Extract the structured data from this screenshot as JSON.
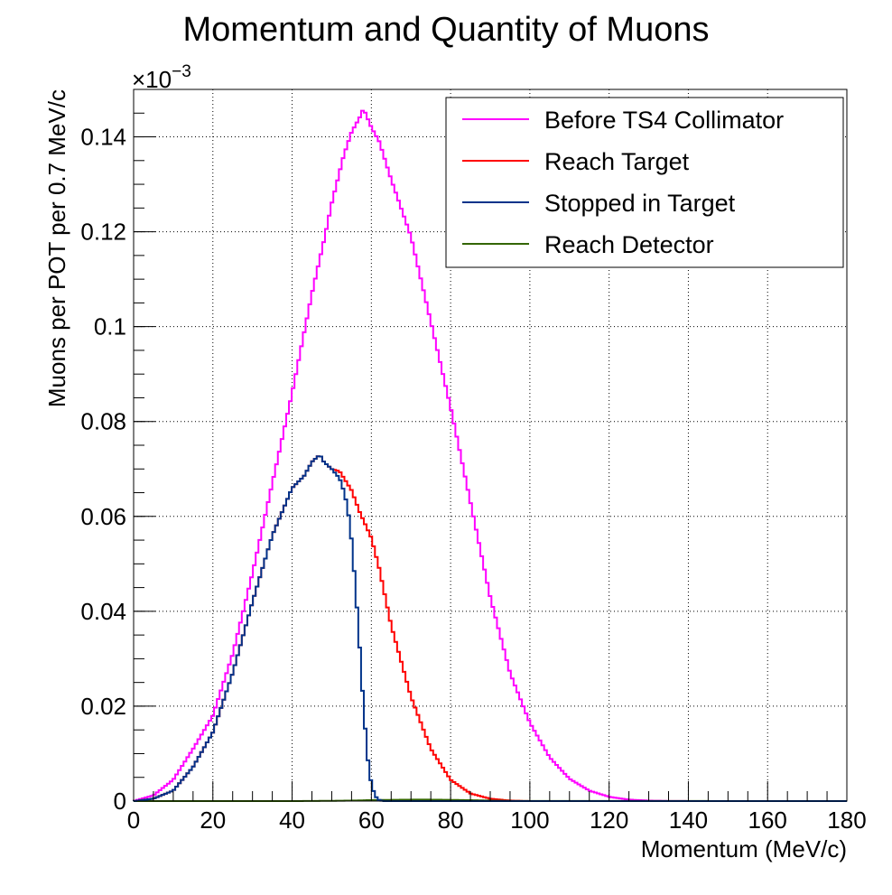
{
  "chart_data": {
    "type": "line",
    "title": "Momentum and Quantity of Muons",
    "xlabel": "Momentum (MeV/c)",
    "ylabel": "Muons per POT per 0.7 MeV/c",
    "y_exponent_label": "×10",
    "y_exponent_power": "−3",
    "xlim": [
      0,
      180
    ],
    "ylim": [
      0,
      0.00015
    ],
    "x_ticks": [
      0,
      20,
      40,
      60,
      80,
      100,
      120,
      140,
      160,
      180
    ],
    "x_tick_labels": [
      "0",
      "20",
      "40",
      "60",
      "80",
      "100",
      "120",
      "140",
      "160",
      "180"
    ],
    "y_ticks": [
      0,
      2e-05,
      4e-05,
      6e-05,
      8e-05,
      0.0001,
      0.00012,
      0.00014
    ],
    "y_tick_labels": [
      "0",
      "0.02",
      "0.04",
      "0.06",
      "0.08",
      "0.1",
      "0.12",
      "0.14"
    ],
    "grid": true,
    "legend_position": "top-right",
    "series": [
      {
        "name": "Before TS4 Collimator",
        "color": "#ff00ff",
        "x": [
          0,
          5,
          10,
          15,
          20,
          25,
          30,
          35,
          40,
          45,
          48,
          50,
          53,
          55,
          57,
          58,
          60,
          62,
          65,
          70,
          75,
          80,
          85,
          90,
          95,
          100,
          105,
          110,
          115,
          120,
          125,
          130,
          135,
          140,
          145,
          150,
          180
        ],
        "y": [
          0,
          1.2e-06,
          4.5e-06,
          1.1e-05,
          1.8e-05,
          3.1e-05,
          4.8e-05,
          6.7e-05,
          8.6e-05,
          0.000107,
          0.000118,
          0.000126,
          0.000136,
          0.000141,
          0.000144,
          0.000146,
          0.000142,
          0.000139,
          0.000131,
          0.000119,
          0.000101,
          8.3e-05,
          6.3e-05,
          4.3e-05,
          2.7e-05,
          1.65e-05,
          9.2e-06,
          4.7e-06,
          2.2e-06,
          9e-07,
          3e-07,
          1e-07,
          3e-08,
          1e-08,
          0,
          0,
          0
        ]
      },
      {
        "name": "Reach Target",
        "color": "#ff0000",
        "x": [
          0,
          5,
          10,
          15,
          20,
          25,
          30,
          35,
          40,
          43,
          45,
          47,
          48,
          50,
          52,
          55,
          57,
          60,
          62,
          65,
          70,
          75,
          80,
          85,
          90,
          95,
          100,
          180
        ],
        "y": [
          0,
          5e-07,
          2.2e-06,
          7.2e-06,
          1.45e-05,
          2.7e-05,
          4.2e-05,
          5.6e-05,
          6.6e-05,
          6.85e-05,
          7.15e-05,
          7.3e-05,
          7.15e-05,
          7e-05,
          6.95e-05,
          6.55e-05,
          6.1e-05,
          5.55e-05,
          4.9e-05,
          3.7e-05,
          2.2e-05,
          1.1e-05,
          4.5e-06,
          1.6e-06,
          5e-07,
          1e-07,
          0,
          0
        ]
      },
      {
        "name": "Stopped in Target",
        "color": "#00338a",
        "x": [
          0,
          5,
          10,
          15,
          20,
          25,
          30,
          35,
          40,
          43,
          45,
          47,
          48,
          50,
          52,
          53,
          54,
          55,
          56,
          57,
          58,
          59,
          60,
          61,
          62,
          63,
          65,
          180
        ],
        "y": [
          0,
          5e-07,
          2.2e-06,
          7.2e-06,
          1.45e-05,
          2.7e-05,
          4.2e-05,
          5.6e-05,
          6.6e-05,
          6.85e-05,
          7.15e-05,
          7.3e-05,
          7.15e-05,
          7e-05,
          6.8e-05,
          6.55e-05,
          6.2e-05,
          5.5e-05,
          4.5e-05,
          3.3e-05,
          2e-05,
          9.5e-06,
          3.5e-06,
          1e-06,
          2e-07,
          0,
          0,
          0
        ]
      },
      {
        "name": "Reach Detector",
        "color": "#336600",
        "x": [
          0,
          40,
          50,
          55,
          60,
          65,
          70,
          75,
          80,
          85,
          90,
          95,
          180
        ],
        "y": [
          0,
          0,
          5e-08,
          1e-07,
          2e-07,
          2.5e-07,
          3e-07,
          3e-07,
          2.5e-07,
          1.8e-07,
          1e-07,
          3e-08,
          0
        ]
      }
    ]
  }
}
